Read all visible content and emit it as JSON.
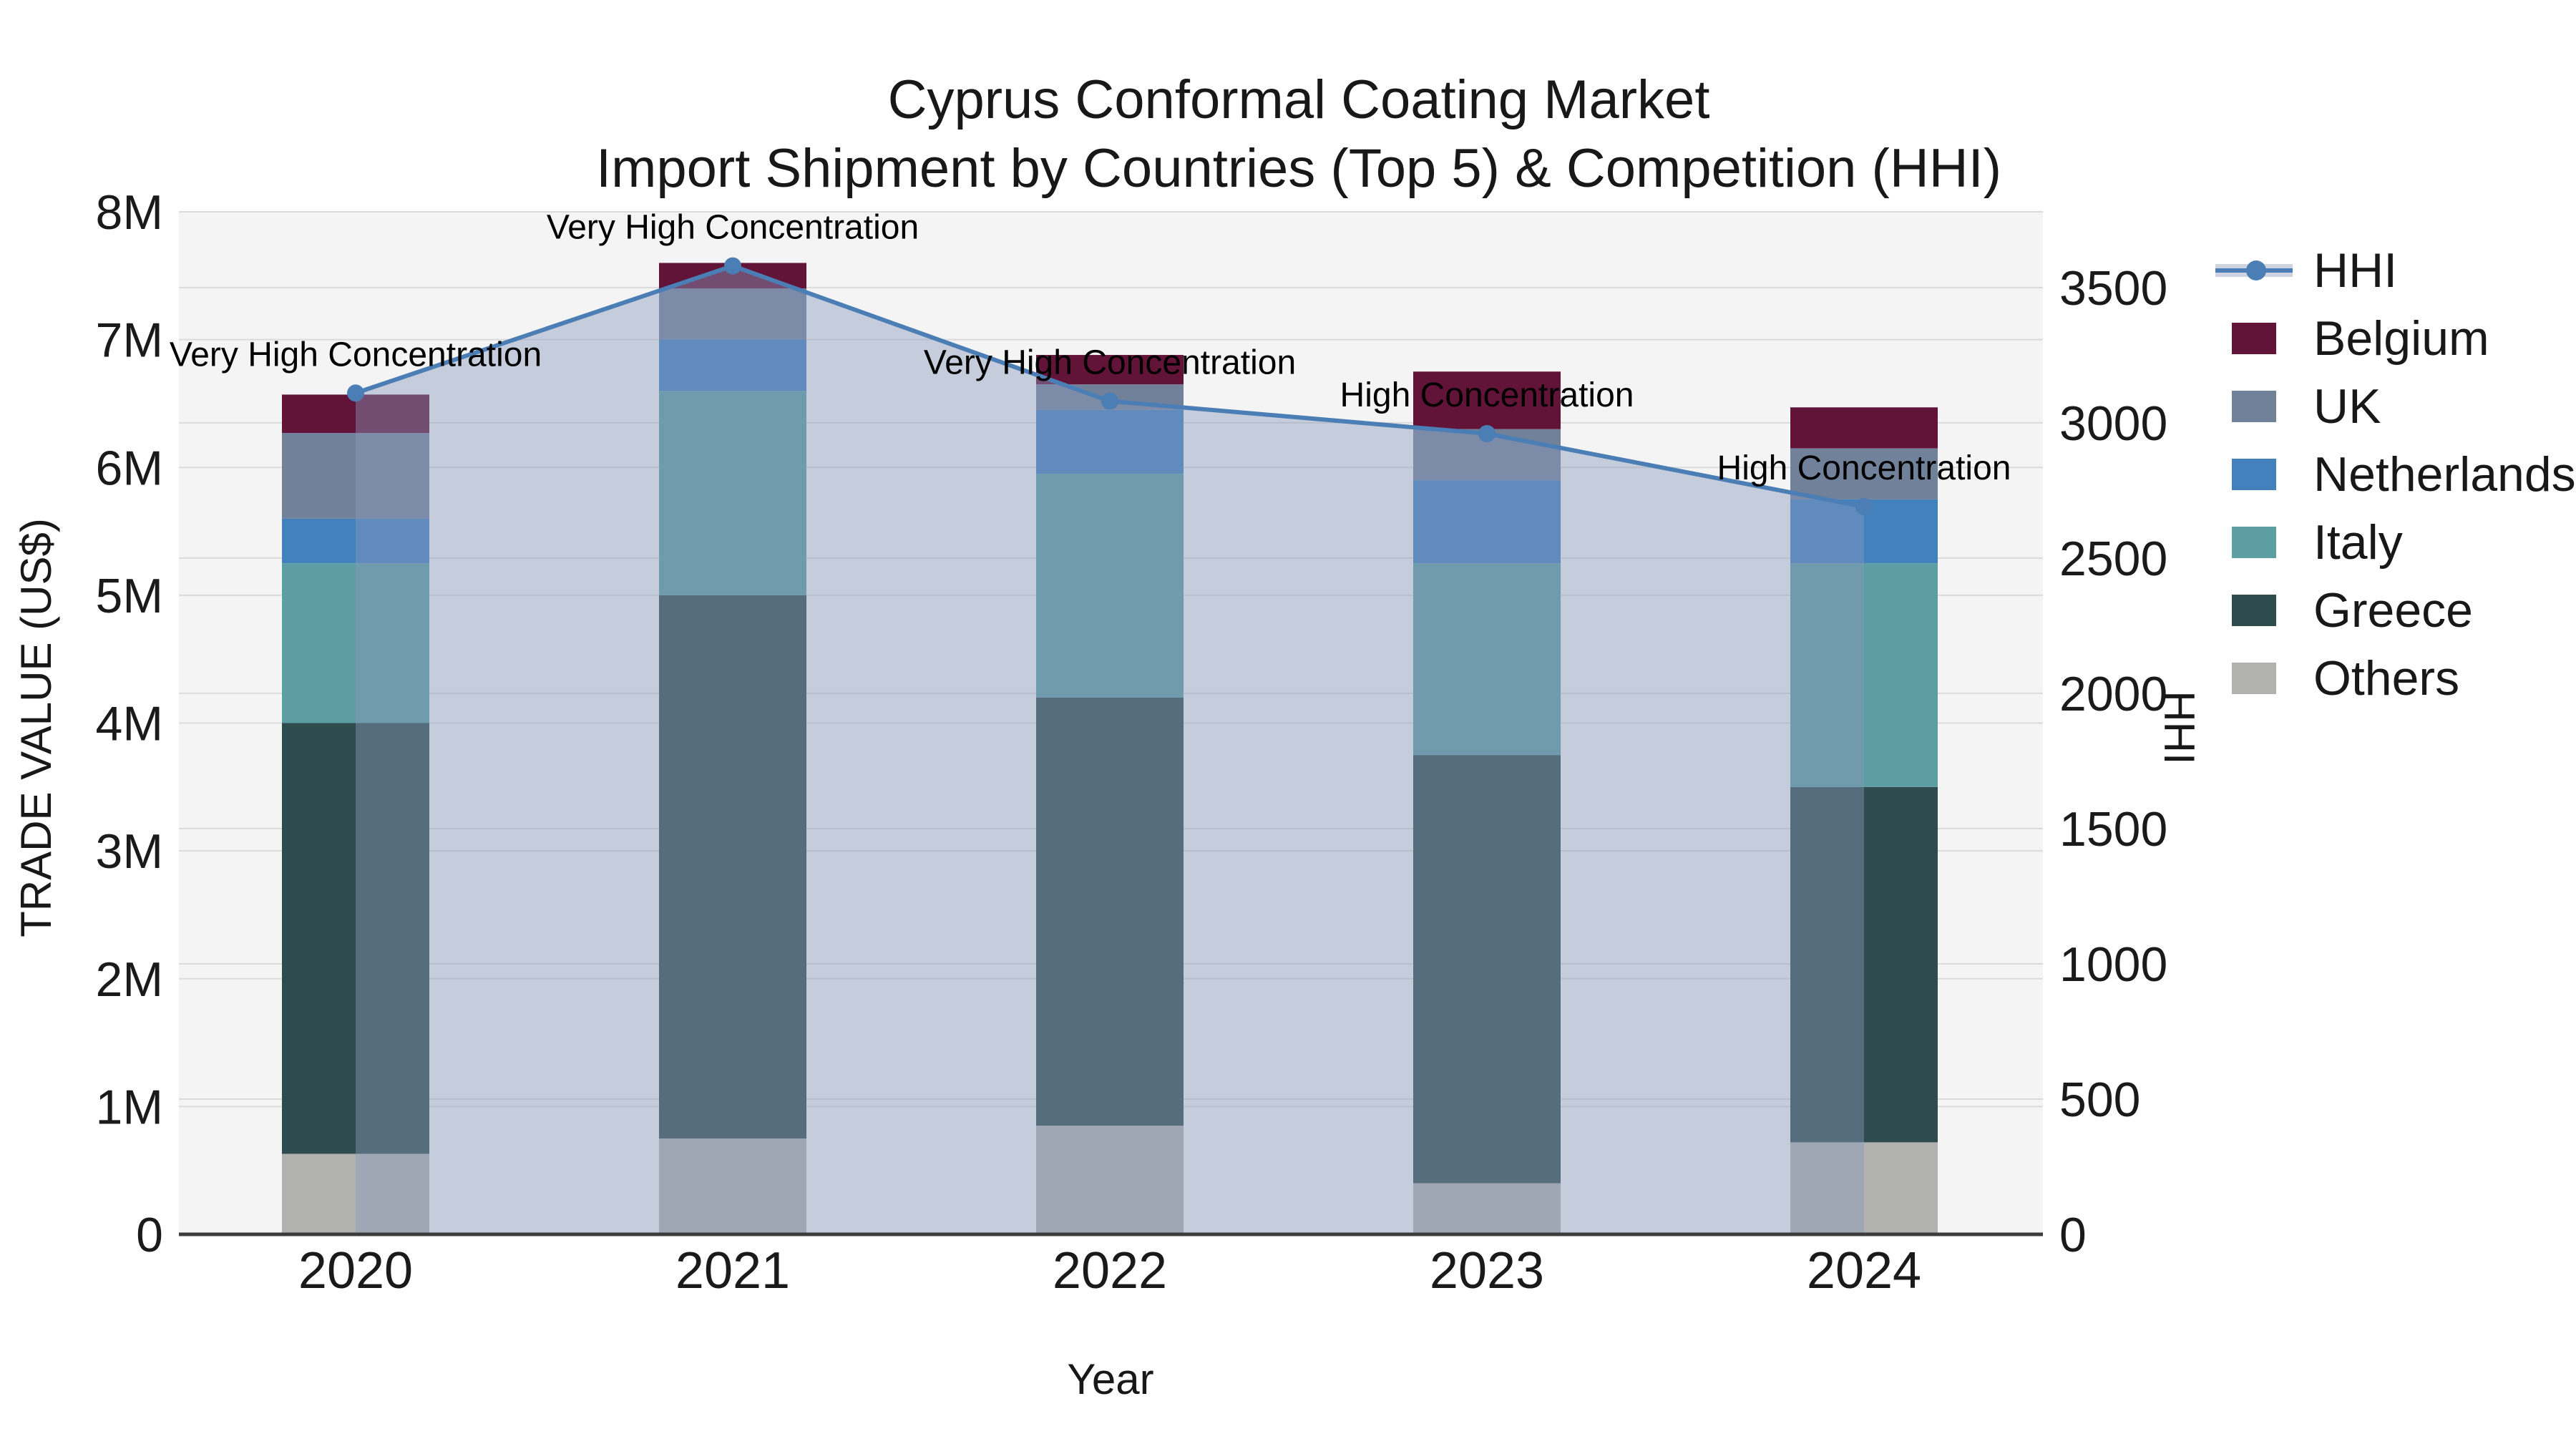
{
  "title": {
    "line1": "Cyprus Conformal Coating Market",
    "line2": "Import Shipment by Countries (Top 5) & Competition (HHI)"
  },
  "axes": {
    "x_label": "Year",
    "y_left_label": "TRADE VALUE (US$)",
    "y_right_label": "HHI",
    "y_left_ticks": [
      "0",
      "1M",
      "2M",
      "3M",
      "4M",
      "5M",
      "6M",
      "7M",
      "8M"
    ],
    "y_right_ticks": [
      "0",
      "500",
      "1000",
      "1500",
      "2000",
      "2500",
      "3000",
      "3500"
    ]
  },
  "legend": [
    {
      "label": "HHI",
      "type": "line",
      "color": "#4a7eb5"
    },
    {
      "label": "Belgium",
      "type": "patch",
      "color": "#611338"
    },
    {
      "label": "UK",
      "type": "patch",
      "color": "#71819a"
    },
    {
      "label": "Netherlands",
      "type": "patch",
      "color": "#4381bd"
    },
    {
      "label": "Italy",
      "type": "patch",
      "color": "#5c9ea1"
    },
    {
      "label": "Greece",
      "type": "patch",
      "color": "#2e4c4e"
    },
    {
      "label": "Others",
      "type": "patch",
      "color": "#b1b1af"
    }
  ],
  "chart_data": {
    "type": "bar+line",
    "title": "Cyprus Conformal Coating Market — Import Shipment by Countries (Top 5) & Competition (HHI)",
    "categories": [
      "2020",
      "2021",
      "2022",
      "2023",
      "2024"
    ],
    "xlabel": "Year",
    "ylabel_left": "TRADE VALUE (US$)",
    "ylabel_right": "HHI",
    "ylim_left": [
      0,
      8000000
    ],
    "ylim_right": [
      0,
      3780
    ],
    "grid": true,
    "legend_position": "upper right outside",
    "series": [
      {
        "name": "Others",
        "stack_order": 1,
        "values": [
          630000,
          750000,
          850000,
          400000,
          720000
        ]
      },
      {
        "name": "Greece",
        "stack_order": 2,
        "values": [
          3370000,
          4250000,
          3350000,
          3350000,
          2780000
        ]
      },
      {
        "name": "Italy",
        "stack_order": 3,
        "values": [
          1250000,
          1600000,
          1750000,
          1500000,
          1750000
        ]
      },
      {
        "name": "Netherlands",
        "stack_order": 4,
        "values": [
          350000,
          400000,
          500000,
          650000,
          500000
        ]
      },
      {
        "name": "UK",
        "stack_order": 5,
        "values": [
          670000,
          400000,
          200000,
          400000,
          400000
        ]
      },
      {
        "name": "Belgium",
        "stack_order": 6,
        "values": [
          300000,
          200000,
          230000,
          450000,
          320000
        ]
      }
    ],
    "line_series": {
      "name": "HHI",
      "axis": "right",
      "values": [
        3110,
        3580,
        3080,
        2960,
        2690
      ]
    },
    "annotations": [
      "Very High Concentration",
      "Very High Concentration",
      "Very High Concentration",
      "High Concentration",
      "High Concentration"
    ]
  },
  "colors": {
    "Others": "#b1b1af",
    "Greece": "#2e4c4e",
    "Italy": "#5c9ea1",
    "Netherlands": "#4381bd",
    "UK": "#71819a",
    "Belgium": "#611338",
    "hhi_line": "#4a7eb5",
    "hhi_fill": "rgba(137,153,186,0.44)",
    "plot_background": "#f4f4f4",
    "gridline": "#dbdbdb",
    "baseline": "#3c3c3c",
    "text": "#1a1a1a"
  }
}
